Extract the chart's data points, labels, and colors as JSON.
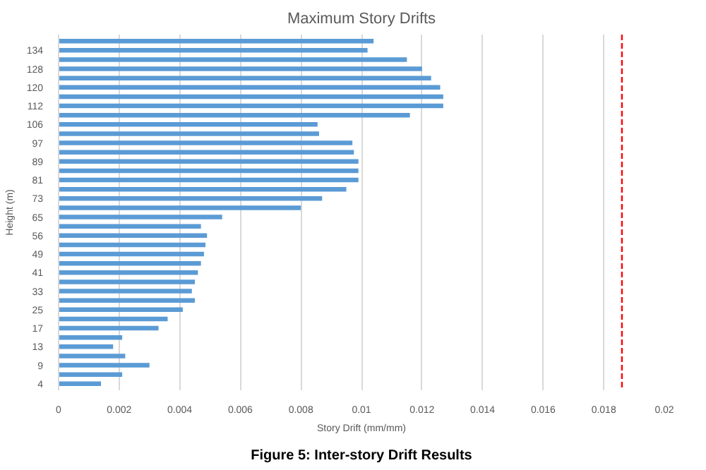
{
  "chart_data": {
    "type": "bar",
    "orientation": "horizontal",
    "title": "Maximum Story Drifts",
    "xlabel": "Story Drift (mm/mm)",
    "ylabel": "Height (m)",
    "categories": [
      null,
      "134",
      null,
      "128",
      null,
      "120",
      null,
      "112",
      null,
      "106",
      null,
      "97",
      null,
      "89",
      null,
      "81",
      null,
      "73",
      null,
      "65",
      null,
      "56",
      null,
      "49",
      null,
      "41",
      null,
      "33",
      null,
      "25",
      null,
      "17",
      null,
      "13",
      null,
      "9",
      null,
      "4"
    ],
    "values": [
      0.0104,
      0.0102,
      0.0115,
      0.012,
      0.0123,
      0.0126,
      0.0127,
      0.0127,
      0.0116,
      0.00855,
      0.0086,
      0.0097,
      0.00975,
      0.0099,
      0.0099,
      0.0099,
      0.0095,
      0.0087,
      0.008,
      0.0054,
      0.0047,
      0.0049,
      0.00485,
      0.0048,
      0.0047,
      0.0046,
      0.0045,
      0.0044,
      0.0045,
      0.0041,
      0.0036,
      0.0033,
      0.0021,
      0.0018,
      0.0022,
      0.003,
      0.0021,
      0.0014
    ],
    "color": "#5b9bd5",
    "xlim": [
      0,
      0.02
    ],
    "xticks": [
      0,
      0.002,
      0.004,
      0.006,
      0.008,
      0.01,
      0.012,
      0.014,
      0.016,
      0.018,
      0.02
    ],
    "grid": "x",
    "ref_lines": [
      {
        "axis": "x",
        "value": 0.0186,
        "color": "#ff0000",
        "line_style": "dashed"
      }
    ],
    "annotations": [
      "Figure 5: Inter-story Drift Results"
    ]
  }
}
